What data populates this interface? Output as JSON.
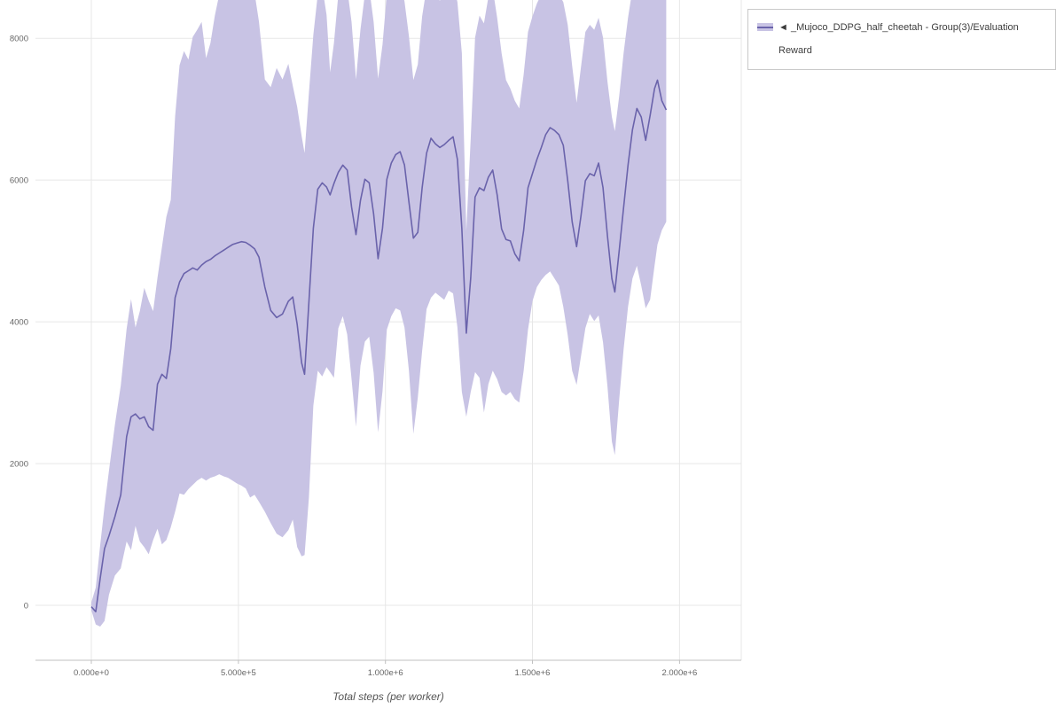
{
  "legend": {
    "items": [
      {
        "marker": "◄",
        "label": "_Mujoco_DDPG_half_cheetah - Group(3)/Evaluation Reward"
      }
    ]
  },
  "chart_data": {
    "type": "line",
    "title": "",
    "xlabel": "Total steps (per worker)",
    "ylabel": "",
    "grid": true,
    "legend_position": "top-right",
    "xlim": [
      -190000,
      2210000
    ],
    "ylim": [
      -775,
      8540
    ],
    "x_ticks": [
      0,
      500000,
      1000000,
      1500000,
      2000000
    ],
    "x_tick_labels": [
      "0.000e+0",
      "5.000e+5",
      "1.000e+6",
      "1.500e+6",
      "2.000e+6"
    ],
    "y_ticks": [
      0,
      2000,
      4000,
      6000,
      8000
    ],
    "colors": {
      "grid": "#e7e7e7",
      "axis": "#c0c0c0",
      "tick_label": "#666666",
      "axis_title": "#555555"
    },
    "series": [
      {
        "name": "_Mujoco_DDPG_half_cheetah - Group(3)/Evaluation Reward",
        "line_color": "#6a63ab",
        "band_color": "#c8c3e4",
        "columns": [
          "total_steps",
          "mean_reward",
          "band_min",
          "band_max"
        ],
        "points": [
          [
            0,
            -20,
            -70,
            40
          ],
          [
            15000,
            -90,
            -270,
            250
          ],
          [
            30000,
            380,
            -300,
            850
          ],
          [
            45000,
            800,
            -220,
            1400
          ],
          [
            60000,
            980,
            150,
            1900
          ],
          [
            80000,
            1250,
            420,
            2550
          ],
          [
            100000,
            1560,
            520,
            3100
          ],
          [
            120000,
            2380,
            900,
            3900
          ],
          [
            135000,
            2660,
            780,
            4320
          ],
          [
            150000,
            2700,
            1120,
            3920
          ],
          [
            165000,
            2630,
            900,
            4150
          ],
          [
            180000,
            2660,
            820,
            4480
          ],
          [
            195000,
            2520,
            720,
            4300
          ],
          [
            210000,
            2470,
            920,
            4150
          ],
          [
            225000,
            3120,
            1080,
            4620
          ],
          [
            240000,
            3260,
            860,
            5050
          ],
          [
            255000,
            3200,
            920,
            5480
          ],
          [
            270000,
            3620,
            1100,
            5720
          ],
          [
            285000,
            4340,
            1320,
            6900
          ],
          [
            300000,
            4560,
            1580,
            7620
          ],
          [
            315000,
            4680,
            1560,
            7820
          ],
          [
            330000,
            4720,
            1640,
            7700
          ],
          [
            345000,
            4760,
            1700,
            8020
          ],
          [
            360000,
            4730,
            1760,
            8120
          ],
          [
            375000,
            4800,
            1800,
            8230
          ],
          [
            390000,
            4850,
            1760,
            7720
          ],
          [
            405000,
            4880,
            1800,
            7930
          ],
          [
            420000,
            4930,
            1820,
            8320
          ],
          [
            435000,
            4970,
            1850,
            8620
          ],
          [
            450000,
            5010,
            1820,
            8750
          ],
          [
            465000,
            5050,
            1800,
            8760
          ],
          [
            480000,
            5090,
            1760,
            8640
          ],
          [
            495000,
            5110,
            1720,
            8730
          ],
          [
            510000,
            5130,
            1690,
            8740
          ],
          [
            525000,
            5120,
            1650,
            8650
          ],
          [
            540000,
            5080,
            1520,
            8720
          ],
          [
            555000,
            5030,
            1560,
            8640
          ],
          [
            570000,
            4910,
            1460,
            8230
          ],
          [
            590000,
            4490,
            1320,
            7420
          ],
          [
            610000,
            4160,
            1160,
            7310
          ],
          [
            630000,
            4060,
            1010,
            7580
          ],
          [
            650000,
            4110,
            960,
            7420
          ],
          [
            670000,
            4290,
            1060,
            7640
          ],
          [
            685000,
            4350,
            1210,
            7330
          ],
          [
            700000,
            3960,
            820,
            7030
          ],
          [
            715000,
            3420,
            690,
            6620
          ],
          [
            725000,
            3260,
            710,
            6380
          ],
          [
            740000,
            4280,
            1520,
            7230
          ],
          [
            755000,
            5320,
            2820,
            8050
          ],
          [
            770000,
            5870,
            3310,
            8620
          ],
          [
            785000,
            5960,
            3230,
            8730
          ],
          [
            800000,
            5900,
            3360,
            8330
          ],
          [
            812000,
            5790,
            3290,
            7520
          ],
          [
            825000,
            5950,
            3210,
            7930
          ],
          [
            840000,
            6110,
            3910,
            8620
          ],
          [
            855000,
            6210,
            4080,
            8790
          ],
          [
            870000,
            6140,
            3820,
            8700
          ],
          [
            885000,
            5620,
            3190,
            8230
          ],
          [
            900000,
            5230,
            2520,
            7420
          ],
          [
            915000,
            5710,
            3380,
            8120
          ],
          [
            930000,
            6010,
            3720,
            8620
          ],
          [
            945000,
            5960,
            3790,
            8710
          ],
          [
            960000,
            5520,
            3280,
            8230
          ],
          [
            975000,
            4890,
            2440,
            7430
          ],
          [
            990000,
            5320,
            3020,
            7910
          ],
          [
            1005000,
            6010,
            3890,
            8630
          ],
          [
            1020000,
            6240,
            4080,
            8720
          ],
          [
            1035000,
            6360,
            4190,
            8790
          ],
          [
            1050000,
            6400,
            4160,
            8800
          ],
          [
            1065000,
            6210,
            3920,
            8520
          ],
          [
            1080000,
            5690,
            3310,
            8030
          ],
          [
            1095000,
            5180,
            2420,
            7410
          ],
          [
            1110000,
            5260,
            2930,
            7630
          ],
          [
            1125000,
            5890,
            3590,
            8310
          ],
          [
            1140000,
            6380,
            4180,
            8710
          ],
          [
            1155000,
            6590,
            4340,
            8800
          ],
          [
            1170000,
            6510,
            4410,
            8620
          ],
          [
            1185000,
            6460,
            4360,
            8530
          ],
          [
            1200000,
            6500,
            4310,
            8610
          ],
          [
            1215000,
            6560,
            4440,
            8700
          ],
          [
            1230000,
            6610,
            4400,
            8790
          ],
          [
            1245000,
            6290,
            3920,
            8510
          ],
          [
            1260000,
            5310,
            3010,
            7790
          ],
          [
            1275000,
            3840,
            2660,
            5280
          ],
          [
            1290000,
            4620,
            3010,
            6590
          ],
          [
            1305000,
            5760,
            3290,
            8010
          ],
          [
            1320000,
            5890,
            3210,
            8320
          ],
          [
            1335000,
            5850,
            2720,
            8210
          ],
          [
            1350000,
            6040,
            3120,
            8580
          ],
          [
            1365000,
            6140,
            3310,
            8700
          ],
          [
            1380000,
            5790,
            3190,
            8290
          ],
          [
            1395000,
            5310,
            3010,
            7790
          ],
          [
            1410000,
            5160,
            2960,
            7410
          ],
          [
            1425000,
            5140,
            3010,
            7290
          ],
          [
            1440000,
            4960,
            2910,
            7120
          ],
          [
            1455000,
            4860,
            2860,
            7010
          ],
          [
            1470000,
            5290,
            3310,
            7490
          ],
          [
            1485000,
            5890,
            3890,
            8090
          ],
          [
            1500000,
            6090,
            4290,
            8310
          ],
          [
            1515000,
            6290,
            4490,
            8490
          ],
          [
            1530000,
            6460,
            4590,
            8620
          ],
          [
            1545000,
            6640,
            4660,
            8710
          ],
          [
            1560000,
            6740,
            4710,
            8790
          ],
          [
            1575000,
            6700,
            4610,
            8700
          ],
          [
            1590000,
            6640,
            4510,
            8620
          ],
          [
            1605000,
            6490,
            4210,
            8510
          ],
          [
            1620000,
            5990,
            3810,
            8190
          ],
          [
            1635000,
            5410,
            3310,
            7610
          ],
          [
            1650000,
            5060,
            3110,
            7090
          ],
          [
            1665000,
            5490,
            3510,
            7590
          ],
          [
            1680000,
            5990,
            3910,
            8090
          ],
          [
            1695000,
            6090,
            4110,
            8190
          ],
          [
            1710000,
            6060,
            4010,
            8120
          ],
          [
            1725000,
            6240,
            4090,
            8290
          ],
          [
            1740000,
            5890,
            3710,
            8010
          ],
          [
            1755000,
            5210,
            3090,
            7390
          ],
          [
            1770000,
            4610,
            2310,
            6890
          ],
          [
            1780000,
            4420,
            2120,
            6690
          ],
          [
            1795000,
            5010,
            2910,
            7190
          ],
          [
            1810000,
            5610,
            3610,
            7790
          ],
          [
            1825000,
            6210,
            4210,
            8290
          ],
          [
            1840000,
            6710,
            4610,
            8690
          ],
          [
            1855000,
            7010,
            4790,
            8880
          ],
          [
            1870000,
            6890,
            4510,
            8790
          ],
          [
            1885000,
            6560,
            4190,
            8590
          ],
          [
            1900000,
            6910,
            4310,
            8770
          ],
          [
            1915000,
            7290,
            4790,
            8880
          ],
          [
            1925000,
            7410,
            5090,
            8890
          ],
          [
            1940000,
            7120,
            5290,
            8690
          ],
          [
            1955000,
            6990,
            5410,
            8590
          ]
        ]
      }
    ]
  }
}
